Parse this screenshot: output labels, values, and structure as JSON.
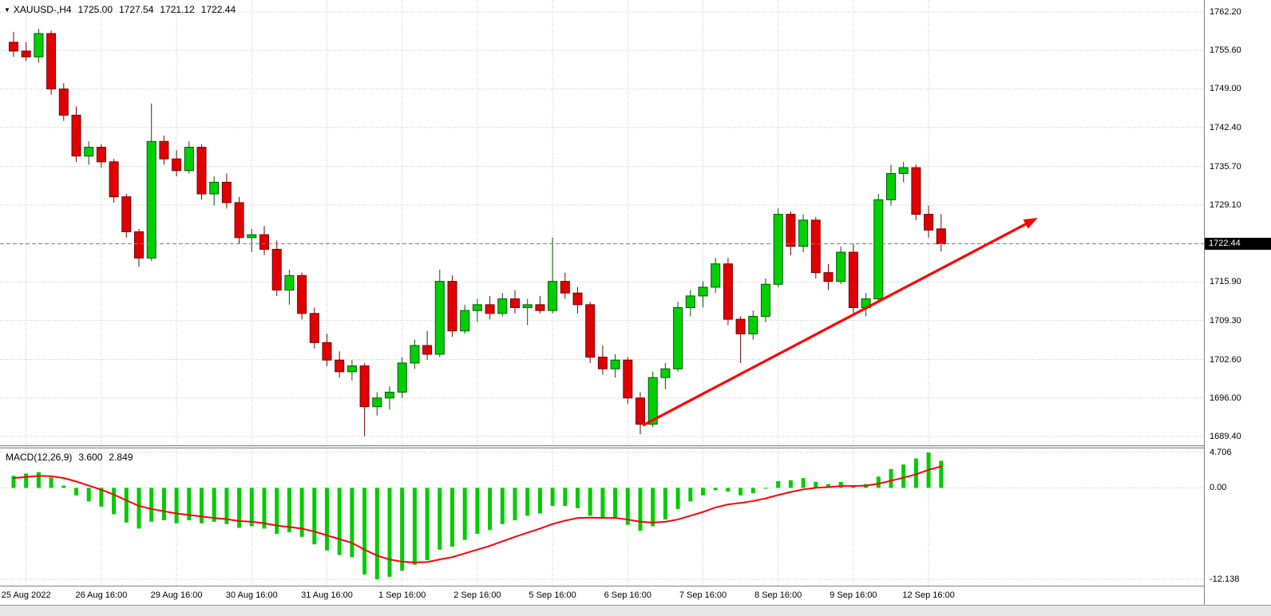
{
  "window": {
    "readout": {
      "symbol": "XAUUSD-,H4",
      "open": "1725.00",
      "high": "1727.54",
      "low": "1721.12",
      "close": "1722.44"
    }
  },
  "icons": {
    "readout_triangle": "▼"
  },
  "chart_data": {
    "type": "candlestick",
    "symbol": "XAUUSD-",
    "timeframe": "H4",
    "title": "XAUUSD-,H4 1725.00 1727.54 1721.12 1722.44",
    "current_price": 1722.44,
    "price_axis": {
      "labels": [
        "1762.20",
        "1755.60",
        "1749.00",
        "1742.40",
        "1735.70",
        "1729.10",
        "1715.90",
        "1709.30",
        "1702.60",
        "1696.00",
        "1689.40"
      ],
      "current_price_label": "1722.44"
    },
    "time_axis": {
      "labels": [
        "25 Aug 2022",
        "26 Aug 16:00",
        "29 Aug 16:00",
        "30 Aug 16:00",
        "31 Aug 16:00",
        "1 Sep 16:00",
        "2 Sep 16:00",
        "5 Sep 16:00",
        "6 Sep 16:00",
        "7 Sep 16:00",
        "8 Sep 16:00",
        "9 Sep 16:00",
        "12 Sep 16:00"
      ],
      "candle_indices": [
        1,
        7,
        13,
        19,
        25,
        31,
        37,
        43,
        49,
        55,
        61,
        67,
        73
      ]
    },
    "candles_format": [
      "open",
      "high",
      "low",
      "close"
    ],
    "candles": [
      [
        1757.0,
        1758.8,
        1754.5,
        1755.5
      ],
      [
        1755.5,
        1757.0,
        1753.8,
        1754.5
      ],
      [
        1754.5,
        1759.3,
        1753.5,
        1758.5
      ],
      [
        1758.5,
        1759.0,
        1748.0,
        1749.0
      ],
      [
        1749.0,
        1750.0,
        1743.5,
        1744.5
      ],
      [
        1744.5,
        1746.0,
        1736.5,
        1737.5
      ],
      [
        1737.5,
        1740.0,
        1736.0,
        1739.0
      ],
      [
        1739.0,
        1739.5,
        1735.5,
        1736.5
      ],
      [
        1736.5,
        1737.0,
        1729.5,
        1730.5
      ],
      [
        1730.5,
        1731.0,
        1723.5,
        1724.5
      ],
      [
        1724.5,
        1725.0,
        1718.5,
        1720.0
      ],
      [
        1720.0,
        1746.5,
        1719.5,
        1740.0
      ],
      [
        1740.0,
        1741.0,
        1736.0,
        1737.0
      ],
      [
        1737.0,
        1738.5,
        1734.0,
        1735.0
      ],
      [
        1735.0,
        1740.0,
        1734.5,
        1739.0
      ],
      [
        1739.0,
        1739.5,
        1730.0,
        1731.0
      ],
      [
        1731.0,
        1734.0,
        1729.0,
        1733.0
      ],
      [
        1733.0,
        1734.5,
        1728.5,
        1729.5
      ],
      [
        1729.5,
        1730.5,
        1722.5,
        1723.5
      ],
      [
        1723.5,
        1725.0,
        1721.0,
        1724.0
      ],
      [
        1724.0,
        1725.5,
        1720.5,
        1721.5
      ],
      [
        1721.5,
        1723.0,
        1713.5,
        1714.5
      ],
      [
        1714.5,
        1718.0,
        1712.0,
        1717.0
      ],
      [
        1717.0,
        1717.5,
        1709.5,
        1710.5
      ],
      [
        1710.5,
        1711.5,
        1704.5,
        1705.5
      ],
      [
        1705.5,
        1707.0,
        1701.5,
        1702.5
      ],
      [
        1702.5,
        1704.0,
        1699.5,
        1700.5
      ],
      [
        1700.5,
        1702.5,
        1699.0,
        1701.5
      ],
      [
        1701.5,
        1702.0,
        1689.4,
        1694.5
      ],
      [
        1694.5,
        1697.0,
        1693.0,
        1696.0
      ],
      [
        1696.0,
        1698.0,
        1694.0,
        1697.0
      ],
      [
        1697.0,
        1703.0,
        1696.0,
        1702.0
      ],
      [
        1702.0,
        1706.0,
        1701.0,
        1705.0
      ],
      [
        1705.0,
        1707.5,
        1702.5,
        1703.5
      ],
      [
        1703.5,
        1718.0,
        1703.0,
        1716.0
      ],
      [
        1716.0,
        1717.0,
        1706.5,
        1707.5
      ],
      [
        1707.5,
        1712.0,
        1707.0,
        1711.0
      ],
      [
        1711.0,
        1713.0,
        1709.0,
        1712.0
      ],
      [
        1712.0,
        1713.5,
        1709.5,
        1710.5
      ],
      [
        1710.5,
        1714.0,
        1710.0,
        1713.0
      ],
      [
        1713.0,
        1714.5,
        1710.5,
        1711.5
      ],
      [
        1711.5,
        1713.0,
        1708.5,
        1712.0
      ],
      [
        1712.0,
        1713.5,
        1710.5,
        1711.0
      ],
      [
        1711.0,
        1723.5,
        1710.5,
        1716.0
      ],
      [
        1716.0,
        1717.5,
        1713.0,
        1714.0
      ],
      [
        1714.0,
        1715.0,
        1710.5,
        1712.0
      ],
      [
        1712.0,
        1712.5,
        1702.0,
        1703.0
      ],
      [
        1703.0,
        1705.0,
        1700.0,
        1701.0
      ],
      [
        1701.0,
        1703.5,
        1699.5,
        1702.5
      ],
      [
        1702.5,
        1703.0,
        1695.0,
        1696.0
      ],
      [
        1696.0,
        1697.0,
        1689.8,
        1691.5
      ],
      [
        1691.5,
        1700.5,
        1691.0,
        1699.5
      ],
      [
        1699.5,
        1702.0,
        1697.5,
        1701.0
      ],
      [
        1701.0,
        1712.5,
        1700.5,
        1711.5
      ],
      [
        1711.5,
        1714.5,
        1710.0,
        1713.5
      ],
      [
        1713.5,
        1716.0,
        1711.5,
        1715.0
      ],
      [
        1715.0,
        1720.0,
        1714.0,
        1719.0
      ],
      [
        1719.0,
        1720.0,
        1708.5,
        1709.5
      ],
      [
        1709.5,
        1710.0,
        1702.0,
        1707.0
      ],
      [
        1707.0,
        1711.0,
        1706.0,
        1710.0
      ],
      [
        1710.0,
        1716.5,
        1709.0,
        1715.5
      ],
      [
        1715.5,
        1728.5,
        1715.0,
        1727.5
      ],
      [
        1727.5,
        1728.0,
        1720.5,
        1722.0
      ],
      [
        1722.0,
        1727.5,
        1721.0,
        1726.5
      ],
      [
        1726.5,
        1727.0,
        1716.5,
        1717.5
      ],
      [
        1717.5,
        1719.0,
        1714.5,
        1716.0
      ],
      [
        1716.0,
        1722.0,
        1715.5,
        1721.0
      ],
      [
        1721.0,
        1722.5,
        1710.5,
        1711.5
      ],
      [
        1711.5,
        1714.0,
        1710.0,
        1713.0
      ],
      [
        1713.0,
        1731.0,
        1712.5,
        1730.0
      ],
      [
        1730.0,
        1736.0,
        1729.0,
        1734.5
      ],
      [
        1734.5,
        1736.5,
        1733.0,
        1735.5
      ],
      [
        1735.5,
        1736.0,
        1726.5,
        1727.5
      ],
      [
        1727.5,
        1729.0,
        1723.5,
        1724.8
      ],
      [
        1725.0,
        1727.54,
        1721.12,
        1722.44
      ]
    ],
    "trend_arrow": {
      "from": {
        "index": 50.2,
        "price": 1691.3
      },
      "to": {
        "index": 81.7,
        "price": 1726.9
      },
      "color": "#ff0000"
    },
    "macd": {
      "label": "MACD(12,26,9)",
      "main_value": "3.600",
      "signal_value": "2.849",
      "axis_labels": [
        "4.706",
        "0.00",
        "-12.138"
      ],
      "max": 4.706,
      "min": -12.138,
      "histogram": [
        1.6,
        1.9,
        2.1,
        1.4,
        0.3,
        -1.0,
        -1.8,
        -2.5,
        -3.5,
        -4.6,
        -5.4,
        -4.5,
        -4.3,
        -4.7,
        -4.3,
        -4.7,
        -4.5,
        -4.8,
        -5.3,
        -5.1,
        -5.4,
        -6.1,
        -5.9,
        -6.5,
        -7.5,
        -8.3,
        -8.9,
        -9.2,
        -11.5,
        -12.138,
        -11.8,
        -11.0,
        -10.2,
        -9.6,
        -8.2,
        -7.8,
        -6.9,
        -6.1,
        -5.6,
        -4.8,
        -4.3,
        -3.7,
        -3.4,
        -2.4,
        -2.4,
        -2.7,
        -3.7,
        -4.1,
        -4.1,
        -4.9,
        -5.7,
        -5.1,
        -4.2,
        -2.8,
        -1.8,
        -1.0,
        -0.3,
        -0.5,
        -1.0,
        -0.7,
        -0.1,
        0.9,
        1.0,
        1.3,
        0.8,
        0.5,
        0.8,
        0.3,
        0.5,
        1.5,
        2.5,
        3.1,
        3.9,
        4.706,
        3.6
      ],
      "signal": [
        1.3,
        1.45,
        1.6,
        1.55,
        1.3,
        0.85,
        0.3,
        -0.25,
        -0.9,
        -1.65,
        -2.4,
        -2.8,
        -3.1,
        -3.4,
        -3.6,
        -3.8,
        -4.0,
        -4.15,
        -4.4,
        -4.5,
        -4.7,
        -5.0,
        -5.2,
        -5.4,
        -5.8,
        -6.3,
        -6.8,
        -7.3,
        -8.2,
        -9.0,
        -9.5,
        -9.8,
        -9.9,
        -9.85,
        -9.5,
        -9.2,
        -8.7,
        -8.2,
        -7.7,
        -7.1,
        -6.5,
        -5.95,
        -5.4,
        -4.8,
        -4.35,
        -4.0,
        -3.95,
        -4.0,
        -4.0,
        -4.2,
        -4.5,
        -4.6,
        -4.5,
        -4.2,
        -3.7,
        -3.2,
        -2.6,
        -2.2,
        -2.0,
        -1.75,
        -1.4,
        -0.95,
        -0.55,
        -0.2,
        0.0,
        0.1,
        0.25,
        0.25,
        0.3,
        0.55,
        0.95,
        1.35,
        1.8,
        2.4,
        2.849
      ]
    },
    "colors": {
      "background": "#ffffff",
      "grid": "#c4c4c4",
      "bull": "#00d000",
      "bull_border": "#005500",
      "bear": "#e00000",
      "bear_border": "#770000",
      "macd_histogram": "#00cc00",
      "macd_signal": "#ff0000",
      "arrow": "#ff0000",
      "current_price_line": "#808080",
      "price_tag_bg": "#000000",
      "price_tag_text": "#ffffff",
      "axis_line": "#808080",
      "text": "#000000"
    }
  }
}
